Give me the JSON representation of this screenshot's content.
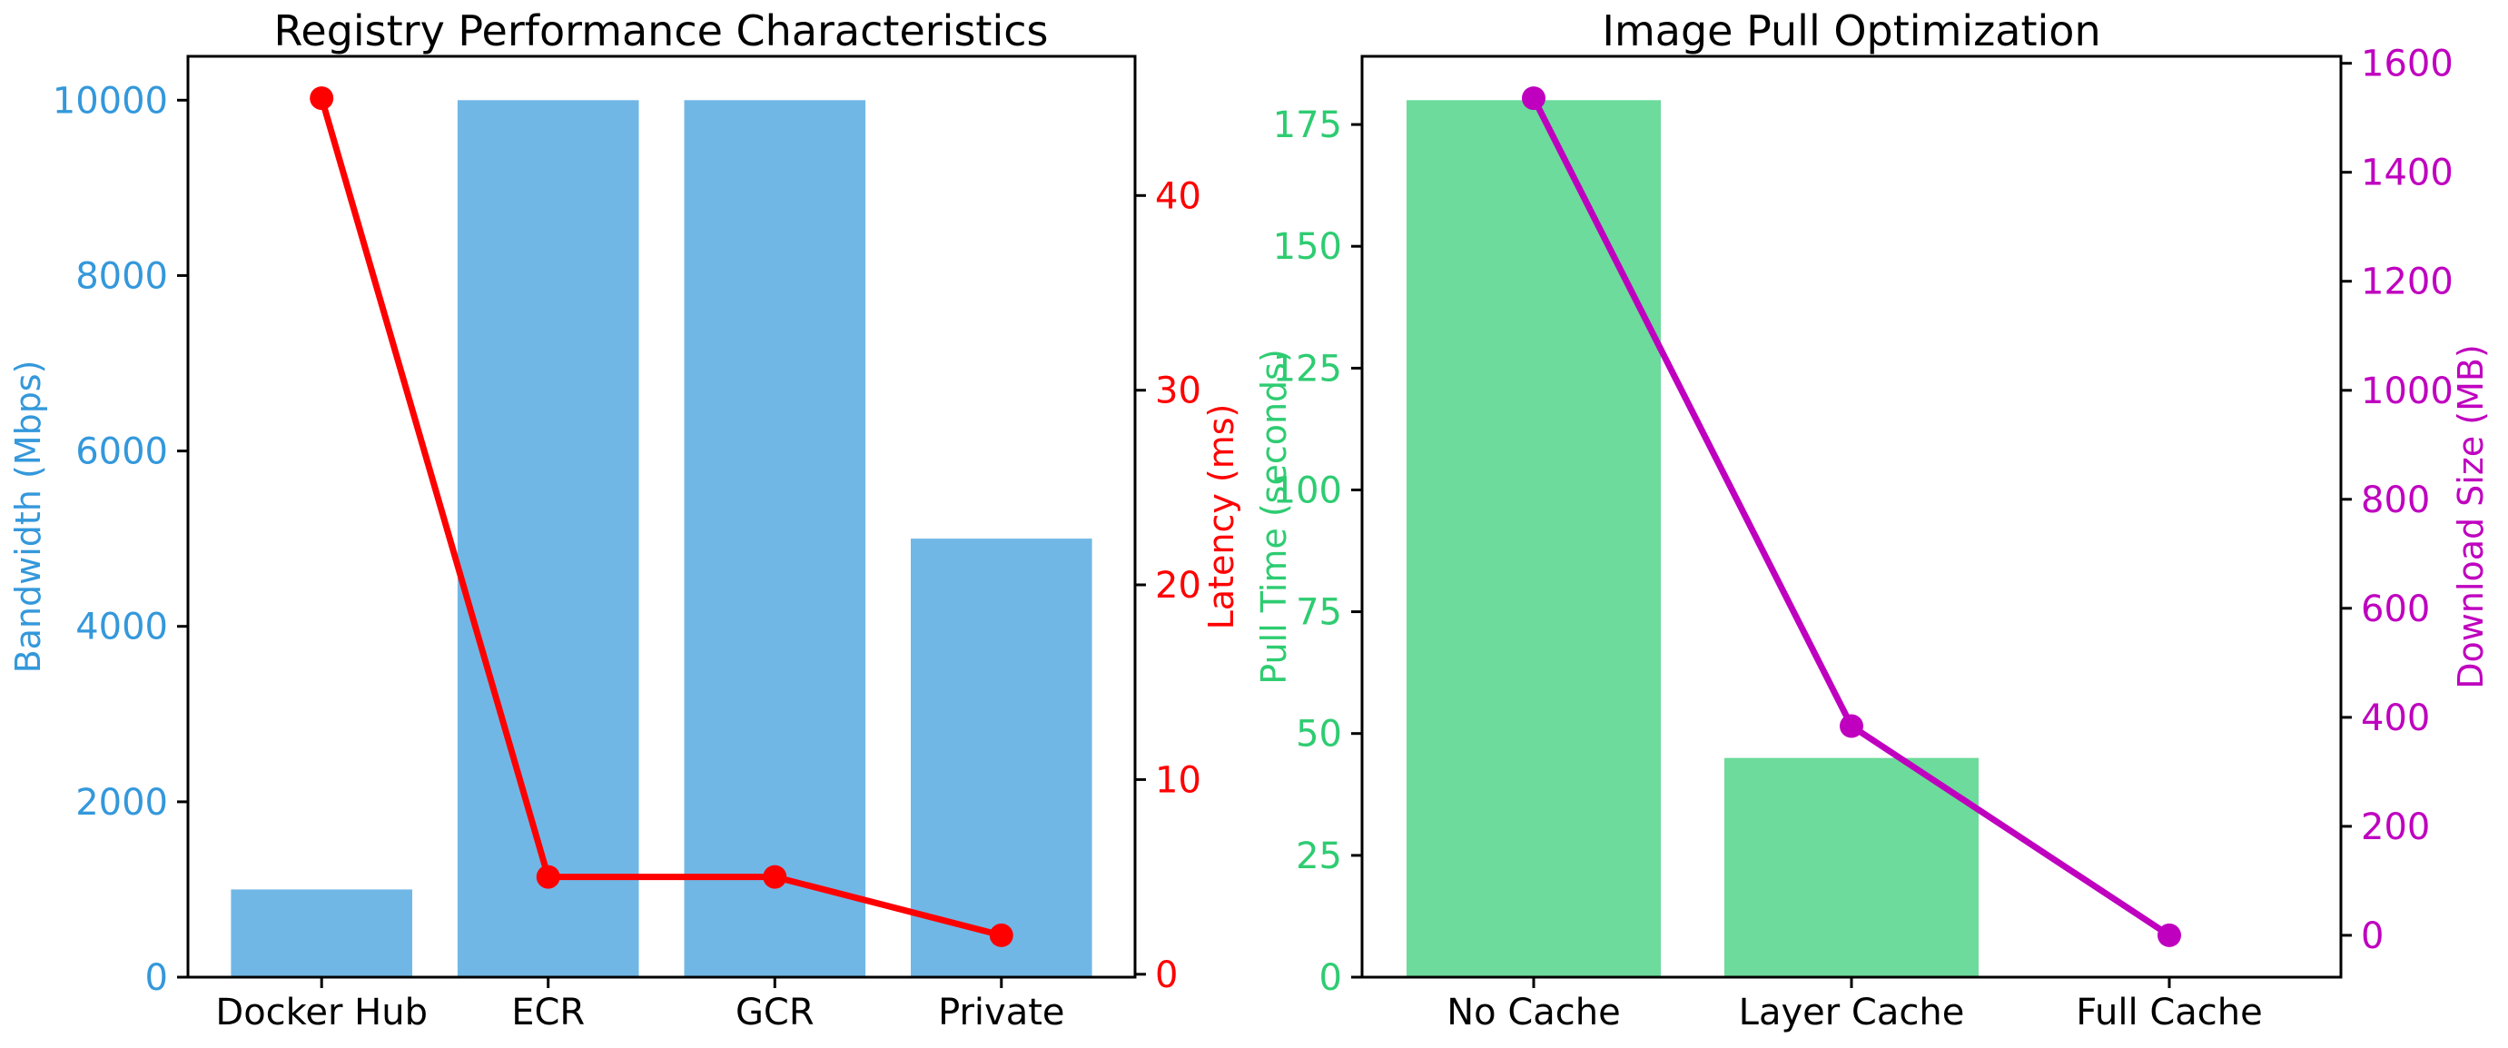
{
  "figure": {
    "background": "#ffffff"
  },
  "chart_data": [
    {
      "type": "bar+line",
      "title": "Registry Performance Characteristics",
      "categories": [
        "Docker Hub",
        "ECR",
        "GCR",
        "Private"
      ],
      "xlabel": "",
      "grid": false,
      "legend": null,
      "bar_series": {
        "name": "Bandwidth (Mbps)",
        "values": [
          1000,
          10000,
          10000,
          5000
        ],
        "color": "#3498db",
        "bar_fill": "#71b7e6",
        "axis_side": "left",
        "ticks": [
          0,
          2000,
          4000,
          6000,
          8000,
          10000
        ],
        "ylim": [
          0,
          10500
        ]
      },
      "line_series": {
        "name": "Latency (ms)",
        "values": [
          45,
          5,
          5,
          2
        ],
        "color": "#ff0000",
        "axis_side": "right",
        "ticks": [
          0,
          10,
          20,
          30,
          40
        ],
        "ylim": [
          -0.15,
          47.15
        ]
      }
    },
    {
      "type": "bar+line",
      "title": "Image Pull Optimization",
      "categories": [
        "No Cache",
        "Layer Cache",
        "Full Cache"
      ],
      "xlabel": "",
      "grid": false,
      "legend": null,
      "bar_series": {
        "name": "Pull Time (seconds)",
        "values": [
          180,
          45,
          0
        ],
        "color": "#2ecc71",
        "bar_fill": "#6cdb9b",
        "axis_side": "left",
        "ticks": [
          0,
          25,
          50,
          75,
          100,
          125,
          150,
          175
        ],
        "ylim": [
          0,
          189
        ]
      },
      "line_series": {
        "name": "Download Size (MB)",
        "values": [
          1536,
          384,
          0
        ],
        "color": "#bf00bf",
        "axis_side": "right",
        "ticks": [
          0,
          200,
          400,
          600,
          800,
          1000,
          1200,
          1400,
          1600
        ],
        "ylim": [
          -76.8,
          1612.8
        ]
      }
    }
  ]
}
